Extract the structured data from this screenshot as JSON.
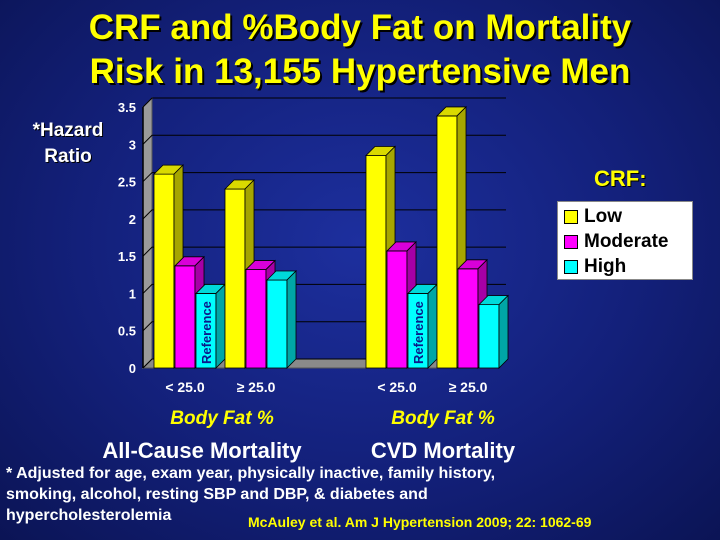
{
  "title_line1": "CRF and %Body Fat on Mortality",
  "title_line2": "Risk in 13,155 Hypertensive Men",
  "y_axis_line1": "*Hazard",
  "y_axis_line2": "Ratio",
  "legend_title": "CRF:",
  "footnote_line1": "* Adjusted for age, exam year, physically inactive, family history,",
  "footnote_line2": "smoking, alcohol, resting SBP and DBP, & diabetes and",
  "footnote_line3": "hypercholesterolemia",
  "citation": "McAuley  et al. Am J Hypertension 2009; 22: 1062-69",
  "colors": {
    "low": "#ffff00",
    "moderate": "#ff00ff",
    "high": "#00ffff"
  },
  "chart_data": {
    "type": "bar",
    "title": "CRF and %Body Fat on Mortality Risk in 13,155 Hypertensive Men",
    "ylabel": "*Hazard Ratio",
    "ylim": [
      0,
      3.5
    ],
    "yticks": [
      "0",
      "0.5",
      "1",
      "1.5",
      "2",
      "2.5",
      "3",
      "3.5"
    ],
    "groups": [
      {
        "name": "All-Cause  Mortality",
        "xlabel": "Body Fat %",
        "categories": [
          "< 25.0",
          "≥ 25.0"
        ]
      },
      {
        "name": "CVD Mortality",
        "xlabel": "Body Fat %",
        "categories": [
          "< 25.0",
          "≥ 25.0"
        ]
      }
    ],
    "series": [
      {
        "name": "Low",
        "values": [
          2.6,
          2.4,
          2.85,
          3.38
        ]
      },
      {
        "name": "Moderate",
        "values": [
          1.37,
          1.32,
          1.57,
          1.33
        ]
      },
      {
        "name": "High",
        "values": [
          1.0,
          1.18,
          1.0,
          0.85
        ]
      }
    ],
    "reference_label": "Reference",
    "reference_bars": [
      0,
      2
    ]
  }
}
